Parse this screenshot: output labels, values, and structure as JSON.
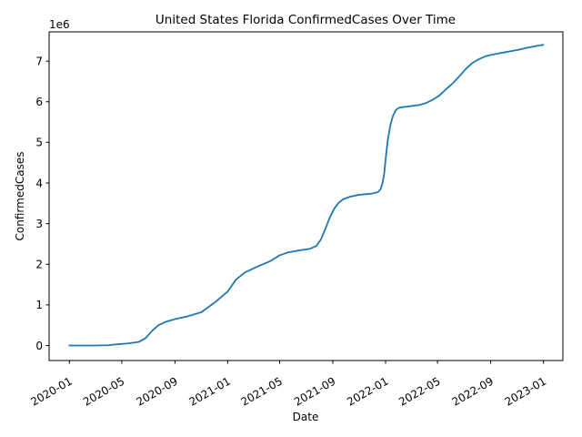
{
  "chart_data": {
    "type": "line",
    "title": "United States Florida ConfirmedCases Over Time",
    "xlabel": "Date",
    "ylabel": "ConfirmedCases",
    "y_offset_label": "1e6",
    "xlim": [
      "2019-11-15",
      "2023-02-15"
    ],
    "ylim": [
      -0.37,
      7.72
    ],
    "grid": false,
    "color": "#1f77b4",
    "x_ticks": [
      {
        "date": "2020-01-01",
        "label": "2020-01"
      },
      {
        "date": "2020-05-01",
        "label": "2020-05"
      },
      {
        "date": "2020-09-01",
        "label": "2020-09"
      },
      {
        "date": "2021-01-01",
        "label": "2021-01"
      },
      {
        "date": "2021-05-01",
        "label": "2021-05"
      },
      {
        "date": "2021-09-01",
        "label": "2021-09"
      },
      {
        "date": "2022-01-01",
        "label": "2022-01"
      },
      {
        "date": "2022-05-01",
        "label": "2022-05"
      },
      {
        "date": "2022-09-01",
        "label": "2022-09"
      },
      {
        "date": "2023-01-01",
        "label": "2023-01"
      }
    ],
    "y_ticks": [
      {
        "value": 0,
        "label": "0"
      },
      {
        "value": 1,
        "label": "1"
      },
      {
        "value": 2,
        "label": "2"
      },
      {
        "value": 3,
        "label": "3"
      },
      {
        "value": 4,
        "label": "4"
      },
      {
        "value": 5,
        "label": "5"
      },
      {
        "value": 6,
        "label": "6"
      },
      {
        "value": 7,
        "label": "7"
      }
    ],
    "series": [
      {
        "x": [
          "2020-01-01",
          "2020-03-01",
          "2020-03-31",
          "2020-04-15",
          "2020-05-15",
          "2020-06-10",
          "2020-06-25",
          "2020-07-10",
          "2020-07-25",
          "2020-08-10",
          "2020-09-01",
          "2020-10-01",
          "2020-11-01",
          "2020-12-01",
          "2021-01-01",
          "2021-01-20",
          "2021-02-10",
          "2021-03-10",
          "2021-04-10",
          "2021-05-01",
          "2021-05-20",
          "2021-06-15",
          "2021-07-10",
          "2021-07-25",
          "2021-08-05",
          "2021-08-15",
          "2021-08-25",
          "2021-09-05",
          "2021-09-15",
          "2021-09-25",
          "2021-10-10",
          "2021-11-01",
          "2021-12-01",
          "2021-12-15",
          "2021-12-20",
          "2021-12-25",
          "2021-12-29",
          "2022-01-01",
          "2022-01-06",
          "2022-01-12",
          "2022-01-18",
          "2022-01-25",
          "2022-02-01",
          "2022-02-10",
          "2022-02-20",
          "2022-03-05",
          "2022-03-20",
          "2022-04-05",
          "2022-04-20",
          "2022-05-05",
          "2022-05-20",
          "2022-06-05",
          "2022-06-20",
          "2022-07-05",
          "2022-07-20",
          "2022-08-05",
          "2022-08-20",
          "2022-09-05",
          "2022-09-20",
          "2022-10-05",
          "2022-10-20",
          "2022-11-05",
          "2022-11-20",
          "2022-12-05",
          "2022-12-20",
          "2022-12-31"
        ],
        "values": [
          0,
          0,
          0.005,
          0.025,
          0.05,
          0.09,
          0.18,
          0.36,
          0.5,
          0.58,
          0.65,
          0.72,
          0.82,
          1.05,
          1.33,
          1.62,
          1.8,
          1.94,
          2.08,
          2.22,
          2.29,
          2.34,
          2.38,
          2.45,
          2.62,
          2.88,
          3.15,
          3.38,
          3.52,
          3.6,
          3.66,
          3.71,
          3.74,
          3.78,
          3.84,
          4.0,
          4.25,
          4.58,
          5.05,
          5.42,
          5.65,
          5.8,
          5.85,
          5.87,
          5.88,
          5.9,
          5.92,
          5.97,
          6.05,
          6.15,
          6.3,
          6.45,
          6.62,
          6.8,
          6.95,
          7.05,
          7.12,
          7.16,
          7.19,
          7.22,
          7.25,
          7.28,
          7.32,
          7.35,
          7.38,
          7.4
        ]
      }
    ]
  }
}
